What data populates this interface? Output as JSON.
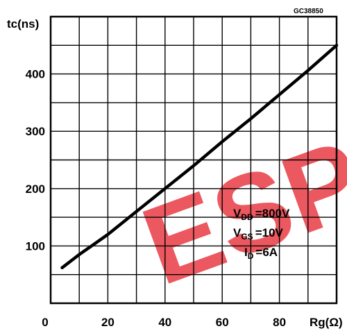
{
  "figure_code": "GC38850",
  "chart_data": {
    "type": "line",
    "ylabel": "tc(ns)",
    "xlabel": "Rg(Ω)",
    "xlim": [
      0,
      100
    ],
    "ylim": [
      0,
      500
    ],
    "x_ticks": [
      0,
      20,
      40,
      60,
      80
    ],
    "y_ticks": [
      100,
      200,
      300,
      400
    ],
    "grid": true,
    "series": [
      {
        "x": [
          4,
          10,
          20,
          30,
          40,
          50,
          60,
          70,
          80,
          90,
          100
        ],
        "y": [
          62,
          85,
          120,
          160,
          200,
          240,
          282,
          322,
          364,
          406,
          450
        ]
      }
    ],
    "conditions": [
      {
        "main": "V",
        "sub": "DD",
        "value": "=800V"
      },
      {
        "main": "V",
        "sub": "GS",
        "value": "=10V"
      },
      {
        "main": "I",
        "sub": "D",
        "value": "=6A"
      }
    ]
  },
  "watermark": {
    "text": "ESP",
    "color": "#e8343c"
  }
}
